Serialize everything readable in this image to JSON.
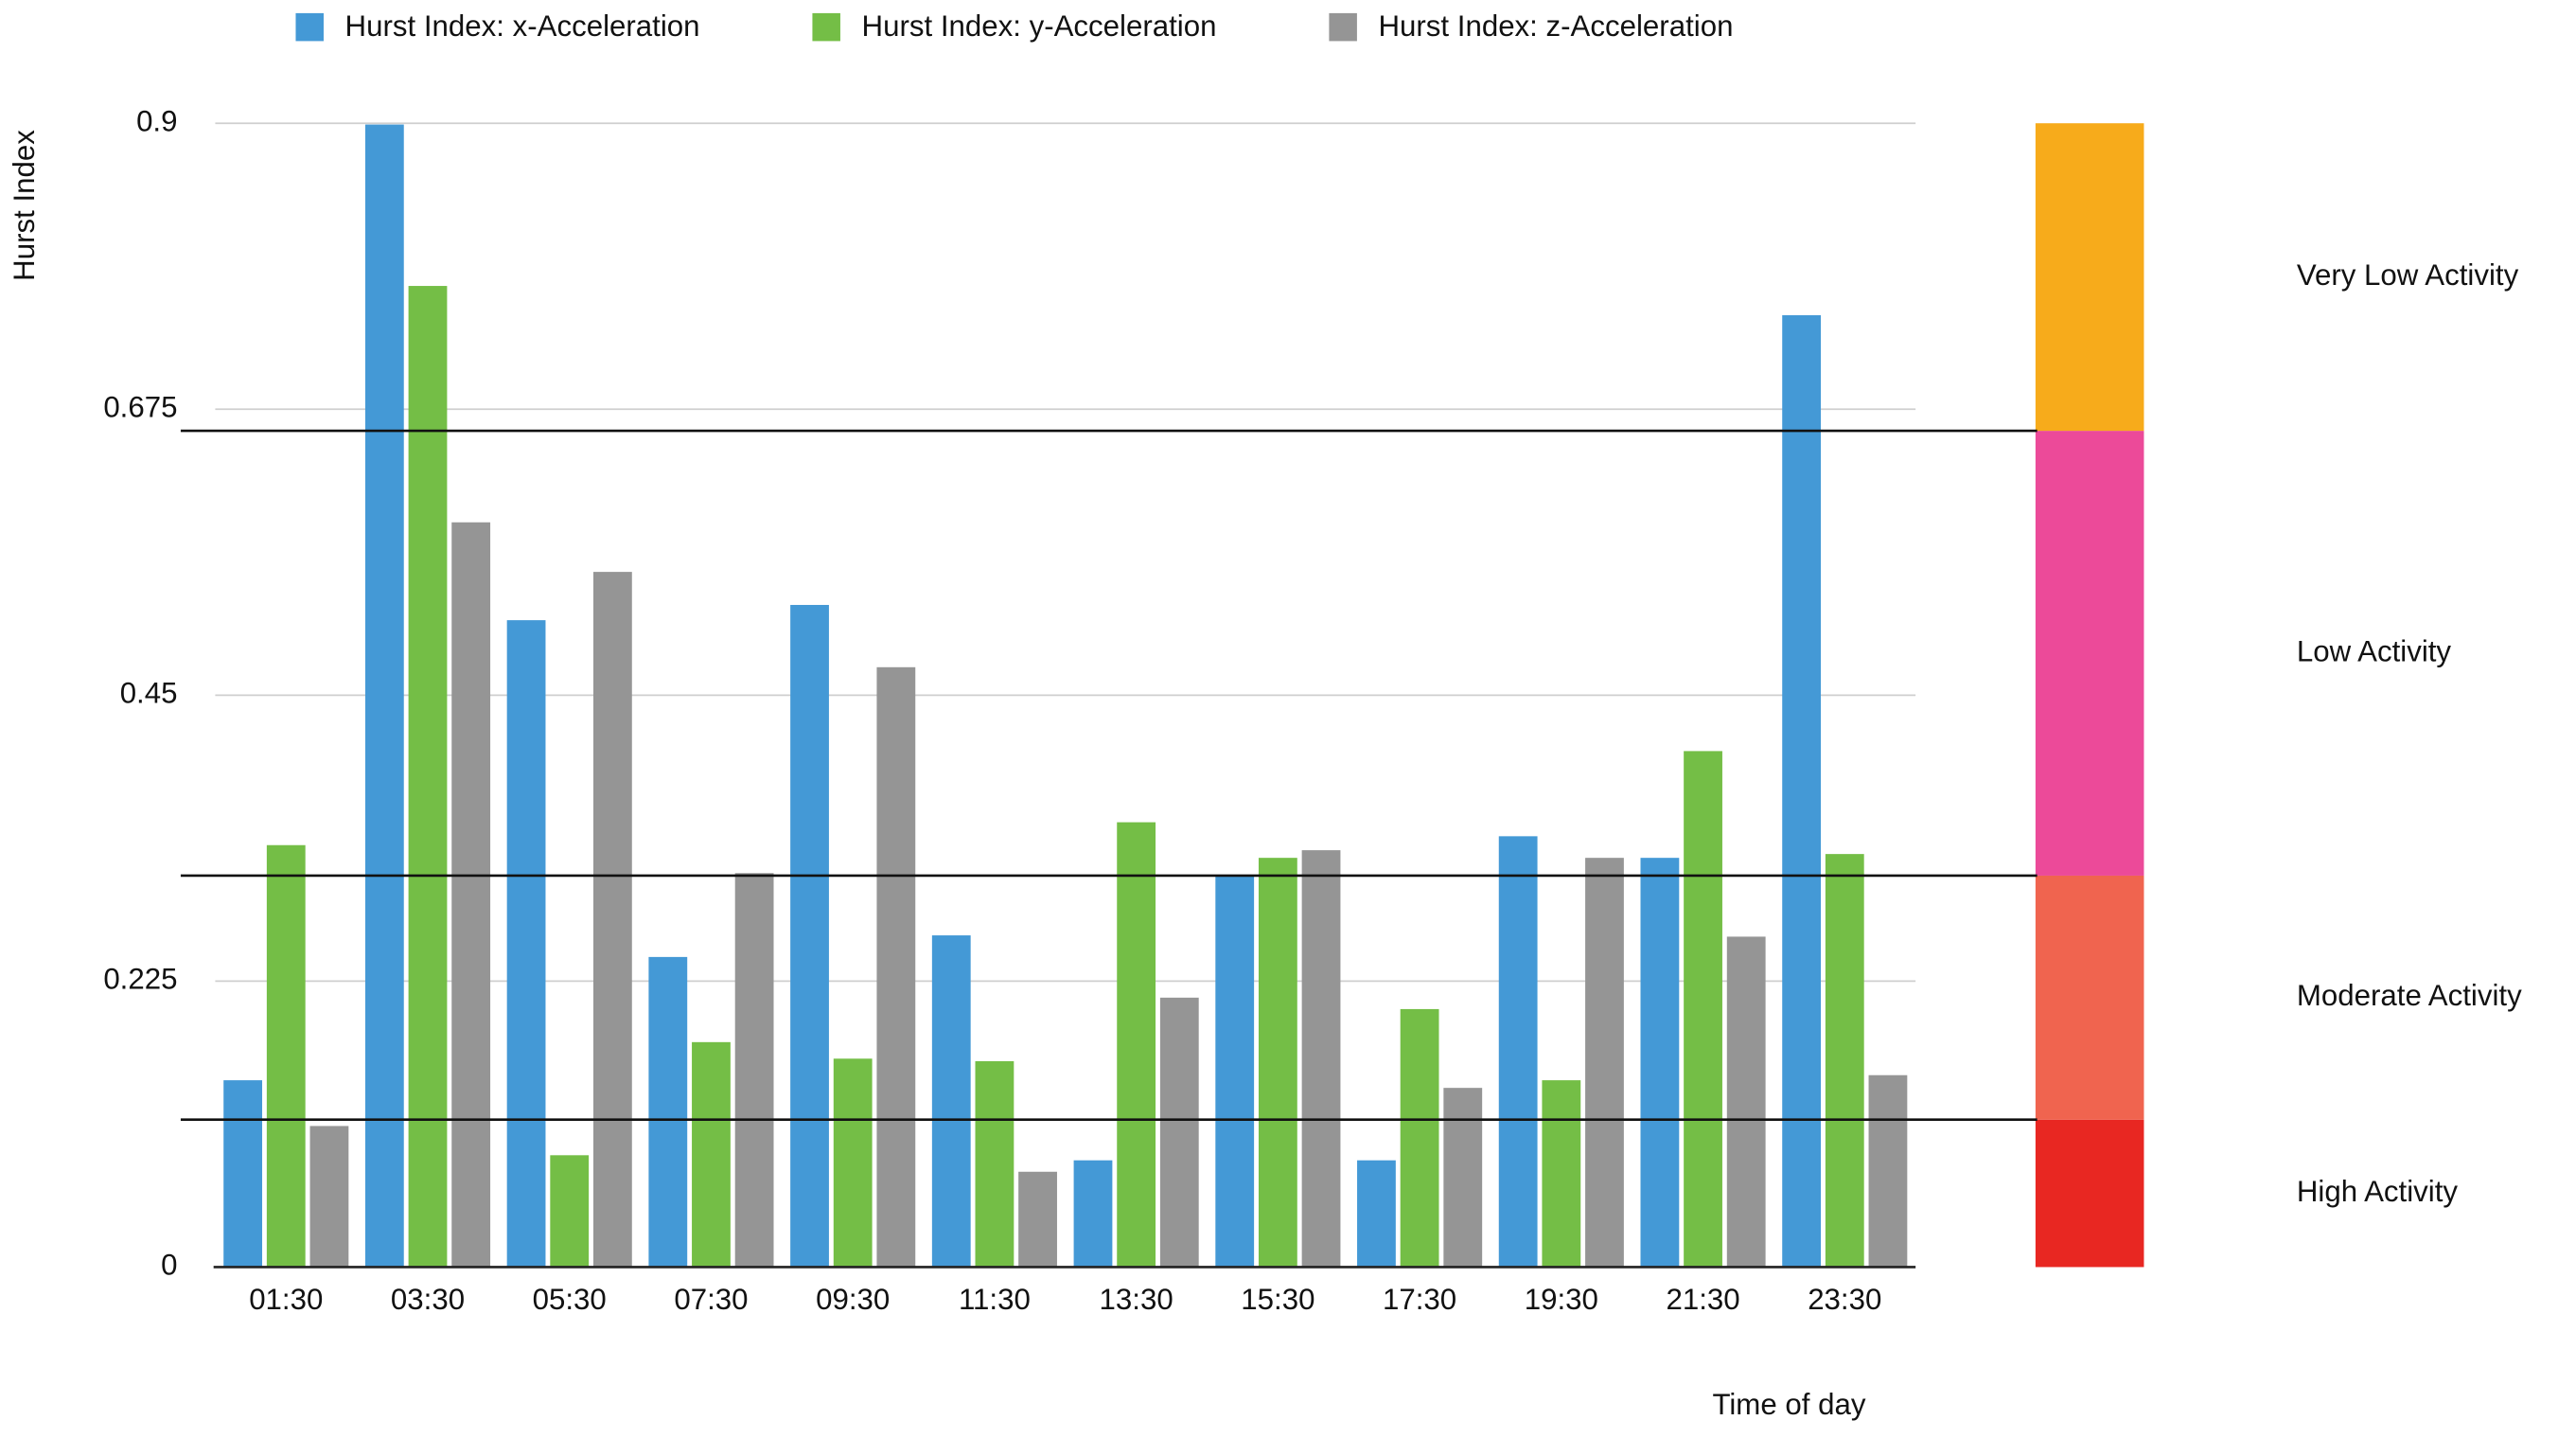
{
  "chart_data": {
    "type": "bar",
    "y_label": "Hurst Index",
    "x_label": "Time of day",
    "categories": [
      "01:30",
      "03:30",
      "05:30",
      "07:30",
      "09:30",
      "11:30",
      "13:30",
      "15:30",
      "17:30",
      "19:30",
      "21:30",
      "23:30"
    ],
    "series": [
      {
        "name": "Hurst Index: x-Acceleration",
        "color": "#4499d6",
        "values": [
          0.147,
          0.899,
          0.509,
          0.244,
          0.521,
          0.261,
          0.084,
          0.308,
          0.084,
          0.339,
          0.322,
          0.749
        ]
      },
      {
        "name": "Hurst Index: y-Acceleration",
        "color": "#74be46",
        "values": [
          0.332,
          0.772,
          0.088,
          0.177,
          0.164,
          0.162,
          0.35,
          0.322,
          0.203,
          0.147,
          0.406,
          0.325
        ]
      },
      {
        "name": "Hurst Index: z-Acceleration",
        "color": "#959595",
        "values": [
          0.111,
          0.586,
          0.547,
          0.31,
          0.472,
          0.075,
          0.212,
          0.328,
          0.141,
          0.322,
          0.26,
          0.151
        ]
      }
    ],
    "ylim": [
      0,
      0.9
    ],
    "yticks": [
      0,
      0.225,
      0.45,
      0.675,
      0.9
    ],
    "grid": true,
    "legend": "top",
    "thresholds": [
      0.116,
      0.308,
      0.658
    ],
    "activity_levels": [
      {
        "label": "High Activity",
        "color": "#e82722"
      },
      {
        "label": "Moderate Activity",
        "color": "#f0644f"
      },
      {
        "label": "Low Activity",
        "color": "#ec4a99"
      },
      {
        "label": "Very Low Activity",
        "color": "#f7ab1b"
      }
    ]
  }
}
